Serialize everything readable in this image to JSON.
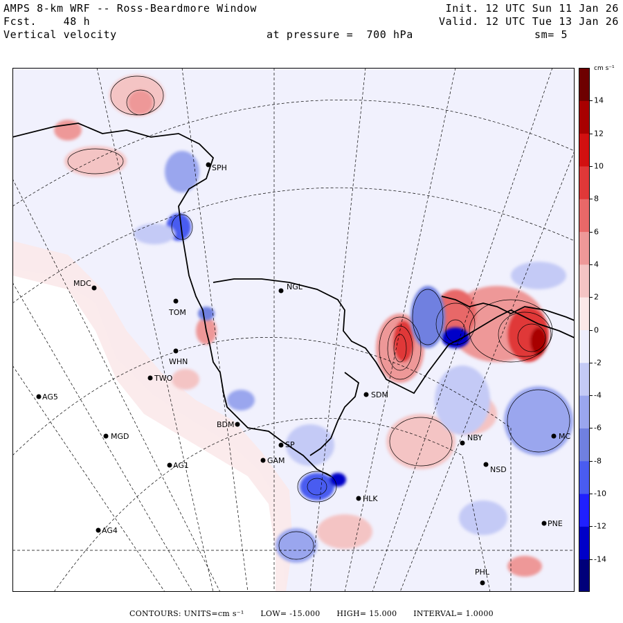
{
  "header": {
    "line1_left": "AMPS 8-km WRF -- Ross-Beardmore Window",
    "line2_left": "Fcst.    48 h",
    "line3_left": "Vertical velocity",
    "line1_right": "Init. 12 UTC Sun 11 Jan 26",
    "line2_right": "Valid. 12 UTC Tue 13 Jan 26",
    "pressure": "at pressure =  700 hPa",
    "smoothing": "sm= 5"
  },
  "colorbar": {
    "unit": "cm s⁻¹",
    "ticks": [
      "14",
      "12",
      "10",
      "8",
      "6",
      "4",
      "2",
      "0",
      "-2",
      "-4",
      "-6",
      "-8",
      "-10",
      "-12",
      "-14"
    ],
    "range": [
      -16,
      16
    ],
    "colors": [
      "#00007a",
      "#0000c8",
      "#2020ff",
      "#4a5cf0",
      "#7080e0",
      "#9aa6ee",
      "#c4caf6",
      "#eeeefc",
      "#fbe8e8",
      "#f4c4c4",
      "#ee9898",
      "#e86868",
      "#e03838",
      "#d21010",
      "#a80000",
      "#6e0000"
    ]
  },
  "stations": [
    {
      "id": "MDC",
      "label": "MDC"
    },
    {
      "id": "TOM",
      "label": "TOM"
    },
    {
      "id": "WHN",
      "label": "WHN"
    },
    {
      "id": "TWO",
      "label": "TWO"
    },
    {
      "id": "AG5",
      "label": "AG5"
    },
    {
      "id": "MGD",
      "label": "MGD"
    },
    {
      "id": "AG1",
      "label": "AG1"
    },
    {
      "id": "AG4",
      "label": "AG4"
    },
    {
      "id": "BDM",
      "label": "BDM"
    },
    {
      "id": "GAM",
      "label": "GAM"
    },
    {
      "id": "NGL",
      "label": "NGL"
    },
    {
      "id": "SDM",
      "label": "SDM"
    },
    {
      "id": "NBY",
      "label": "NBY"
    },
    {
      "id": "NSD",
      "label": "NSD"
    },
    {
      "id": "HLK",
      "label": "HLK"
    },
    {
      "id": "PNE",
      "label": "PNE"
    },
    {
      "id": "PHL",
      "label": "PHL"
    },
    {
      "id": "MCM",
      "label": "MC"
    },
    {
      "id": "SPH",
      "label": "SPH"
    },
    {
      "id": "SPM",
      "label": "SP"
    }
  ],
  "footer": {
    "contours": "CONTOURS:  UNITS=cm s⁻¹",
    "low": "LOW= -15.000",
    "high": "HIGH=  15.000",
    "interval": "INTERVAL=   1.0000"
  }
}
